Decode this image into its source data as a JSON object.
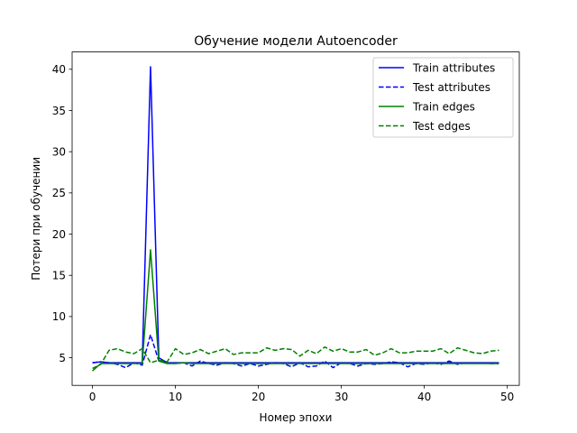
{
  "chart_data": {
    "type": "line",
    "title": "Обучение модели Autoencoder",
    "xlabel": "Номер эпохи",
    "ylabel": "Потери при обучении",
    "xlim": [
      -2.45,
      51.45
    ],
    "ylim": [
      1.65,
      42.1
    ],
    "xticks": [
      0,
      10,
      20,
      30,
      40,
      50
    ],
    "yticks": [
      5,
      10,
      15,
      20,
      25,
      30,
      35,
      40
    ],
    "legend_position": "top-right",
    "grid": false,
    "x": [
      0,
      1,
      2,
      3,
      4,
      5,
      6,
      7,
      8,
      9,
      10,
      11,
      12,
      13,
      14,
      15,
      16,
      17,
      18,
      19,
      20,
      21,
      22,
      23,
      24,
      25,
      26,
      27,
      28,
      29,
      30,
      31,
      32,
      33,
      34,
      35,
      36,
      37,
      38,
      39,
      40,
      41,
      42,
      43,
      44,
      45,
      46,
      47,
      48,
      49
    ],
    "series": [
      {
        "name": "Train attributes",
        "color": "#0000ff",
        "dash": "solid",
        "values": [
          4.4,
          4.5,
          4.4,
          4.4,
          4.4,
          4.4,
          4.4,
          40.3,
          5.0,
          4.4,
          4.4,
          4.4,
          4.4,
          4.4,
          4.4,
          4.4,
          4.4,
          4.4,
          4.4,
          4.4,
          4.4,
          4.4,
          4.4,
          4.4,
          4.4,
          4.4,
          4.4,
          4.4,
          4.4,
          4.4,
          4.4,
          4.4,
          4.4,
          4.4,
          4.4,
          4.4,
          4.4,
          4.4,
          4.4,
          4.4,
          4.4,
          4.4,
          4.4,
          4.4,
          4.4,
          4.4,
          4.4,
          4.4,
          4.4,
          4.4
        ]
      },
      {
        "name": "Test attributes",
        "color": "#0000ff",
        "dash": "dashed",
        "values": [
          4.4,
          4.5,
          4.4,
          4.2,
          3.8,
          4.4,
          4.1,
          7.8,
          4.6,
          4.4,
          4.3,
          4.4,
          4.0,
          4.6,
          4.3,
          4.1,
          4.4,
          4.3,
          4.0,
          4.3,
          4.0,
          4.2,
          4.4,
          4.3,
          3.9,
          4.4,
          3.9,
          4.0,
          4.6,
          3.8,
          4.4,
          4.3,
          4.0,
          4.3,
          4.2,
          4.3,
          4.5,
          4.4,
          3.9,
          4.3,
          4.2,
          4.4,
          4.2,
          4.6,
          4.2,
          4.4,
          4.3,
          4.4,
          4.3,
          4.3
        ]
      },
      {
        "name": "Train edges",
        "color": "#008000",
        "dash": "solid",
        "values": [
          3.4,
          4.3,
          4.3,
          4.3,
          4.3,
          4.3,
          4.3,
          18.1,
          4.6,
          4.3,
          4.3,
          4.4,
          4.3,
          4.3,
          4.3,
          4.3,
          4.3,
          4.3,
          4.3,
          4.3,
          4.3,
          4.3,
          4.3,
          4.3,
          4.3,
          4.3,
          4.3,
          4.3,
          4.3,
          4.3,
          4.3,
          4.3,
          4.3,
          4.3,
          4.3,
          4.3,
          4.3,
          4.3,
          4.3,
          4.3,
          4.3,
          4.3,
          4.3,
          4.3,
          4.3,
          4.3,
          4.3,
          4.3,
          4.3,
          4.3
        ]
      },
      {
        "name": "Test edges",
        "color": "#008000",
        "dash": "dashed",
        "values": [
          3.7,
          4.2,
          5.9,
          6.1,
          5.7,
          5.5,
          6.1,
          4.4,
          4.7,
          4.5,
          6.1,
          5.4,
          5.6,
          6.0,
          5.5,
          5.8,
          6.1,
          5.4,
          5.6,
          5.6,
          5.6,
          6.2,
          5.9,
          6.1,
          6.0,
          5.2,
          5.9,
          5.5,
          6.3,
          5.8,
          6.1,
          5.7,
          5.7,
          6.0,
          5.3,
          5.6,
          6.1,
          5.6,
          5.6,
          5.8,
          5.8,
          5.8,
          6.1,
          5.5,
          6.2,
          5.9,
          5.6,
          5.5,
          5.8,
          5.9
        ]
      }
    ]
  }
}
